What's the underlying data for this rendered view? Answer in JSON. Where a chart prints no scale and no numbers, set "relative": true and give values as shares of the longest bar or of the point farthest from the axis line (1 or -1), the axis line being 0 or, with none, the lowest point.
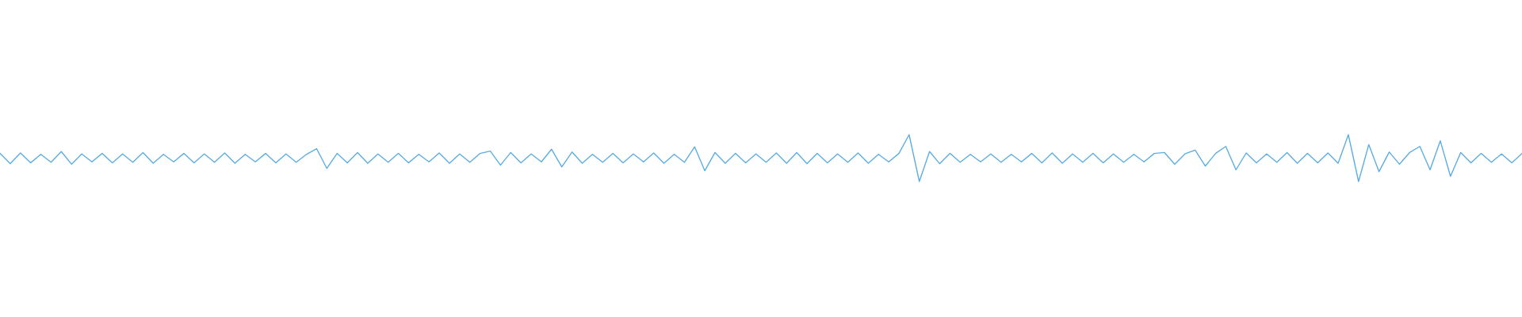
{
  "chart_data": {
    "type": "line",
    "relative": true,
    "color": "#5dade2",
    "categories": [
      null,
      null,
      null,
      null,
      null,
      null,
      null,
      null,
      null,
      null,
      null,
      null,
      null,
      null,
      null,
      null,
      null,
      null,
      null,
      null,
      null,
      null,
      null,
      null,
      null,
      null,
      null,
      null,
      null,
      null,
      null,
      null,
      null,
      null,
      null,
      null,
      null,
      null,
      null,
      null,
      null,
      null,
      null,
      null,
      null,
      null,
      null,
      null,
      null,
      null,
      null,
      null,
      null,
      null,
      null,
      null,
      null,
      null,
      null,
      null,
      null,
      null,
      null,
      null,
      null,
      null,
      null,
      null,
      null,
      null,
      null,
      null,
      null,
      null,
      null,
      null,
      null,
      null,
      null,
      null,
      null,
      null,
      null,
      null,
      null,
      null,
      null,
      null,
      null,
      null,
      null,
      null,
      null,
      null,
      null,
      null,
      null,
      null,
      null,
      null,
      null,
      null,
      null,
      null,
      null,
      null,
      null,
      null,
      null,
      null,
      null,
      null,
      null,
      null,
      null,
      null,
      null,
      null,
      null,
      null,
      null,
      null,
      null,
      null,
      null,
      null,
      null,
      null,
      null,
      null,
      null,
      null,
      null,
      null,
      null,
      null,
      null,
      null,
      null,
      null,
      null,
      null,
      null,
      null,
      null,
      null,
      null,
      null,
      null,
      null
    ],
    "values": [
      0.6,
      0.38,
      0.61,
      0.4,
      0.58,
      0.41,
      0.64,
      0.37,
      0.59,
      0.42,
      0.6,
      0.4,
      0.59,
      0.41,
      0.62,
      0.39,
      0.58,
      0.42,
      0.6,
      0.4,
      0.59,
      0.41,
      0.61,
      0.39,
      0.58,
      0.42,
      0.6,
      0.4,
      0.59,
      0.41,
      0.58,
      0.7,
      0.28,
      0.6,
      0.4,
      0.62,
      0.39,
      0.59,
      0.41,
      0.6,
      0.4,
      0.58,
      0.42,
      0.61,
      0.39,
      0.59,
      0.41,
      0.6,
      0.65,
      0.35,
      0.62,
      0.4,
      0.59,
      0.42,
      0.69,
      0.31,
      0.63,
      0.39,
      0.58,
      0.41,
      0.6,
      0.4,
      0.59,
      0.42,
      0.61,
      0.39,
      0.58,
      0.41,
      0.74,
      0.23,
      0.62,
      0.39,
      0.6,
      0.4,
      0.59,
      0.41,
      0.61,
      0.39,
      0.62,
      0.38,
      0.6,
      0.4,
      0.59,
      0.41,
      0.61,
      0.39,
      0.58,
      0.42,
      0.6,
      1.0,
      0.0,
      0.64,
      0.38,
      0.6,
      0.41,
      0.58,
      0.42,
      0.59,
      0.41,
      0.58,
      0.42,
      0.6,
      0.4,
      0.61,
      0.39,
      0.59,
      0.41,
      0.6,
      0.4,
      0.59,
      0.41,
      0.58,
      0.42,
      0.6,
      0.62,
      0.37,
      0.59,
      0.67,
      0.33,
      0.6,
      0.75,
      0.25,
      0.61,
      0.4,
      0.59,
      0.41,
      0.62,
      0.39,
      0.6,
      0.4,
      0.61,
      0.39,
      1.0,
      0.0,
      0.79,
      0.21,
      0.63,
      0.37,
      0.62,
      0.75,
      0.25,
      0.87,
      0.11,
      0.62,
      0.4,
      0.6,
      0.41,
      0.59,
      0.4,
      0.6
    ]
  }
}
